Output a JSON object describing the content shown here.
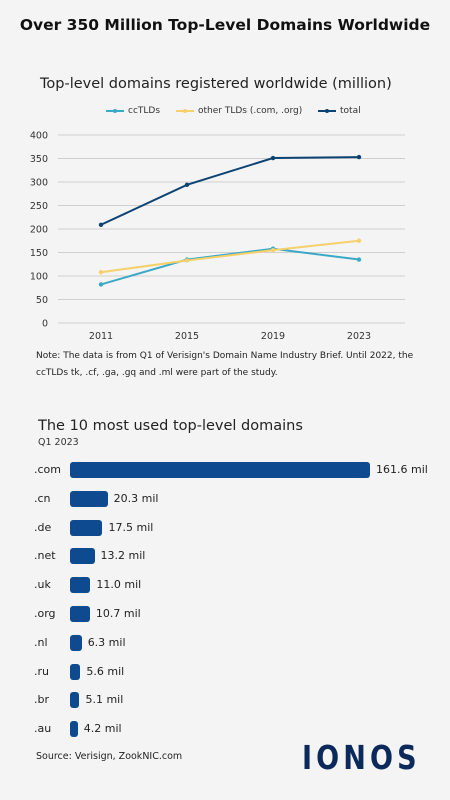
{
  "title": "Over 350 Million Top-Level Domains Worldwide",
  "colors": {
    "ccTLDs": "#3aa8c7",
    "other": "#f5d06b",
    "total": "#0d4373",
    "bar": "#0d4a8f",
    "logo": "#0b2a5b"
  },
  "chart_data": [
    {
      "type": "line",
      "title": "Top-level domains registered worldwide (million)",
      "x": [
        "2011",
        "2015",
        "2019",
        "2023"
      ],
      "ylim": [
        0,
        400
      ],
      "yticks": [
        0,
        50,
        100,
        150,
        200,
        250,
        300,
        350,
        400
      ],
      "grid": true,
      "legend_position": "top",
      "series": [
        {
          "name": "ccTLDs",
          "values": [
            82,
            135,
            158,
            135
          ]
        },
        {
          "name": "other TLDs (.com, .org)",
          "values": [
            108,
            133,
            155,
            175
          ]
        },
        {
          "name": "total",
          "values": [
            209,
            294,
            351,
            353
          ]
        }
      ],
      "note": "Note: The data is from Q1 of Verisign's Domain Name Industry Brief. Until 2022, the ccTLDs tk, .cf, .ga, .gq and .ml were part of the study."
    },
    {
      "type": "bar",
      "orientation": "horizontal",
      "title": "The 10 most used top-level domains",
      "subtitle": "Q1 2023",
      "categories": [
        ".com",
        ".cn",
        ".de",
        ".net",
        ".uk",
        ".org",
        ".nl",
        ".ru",
        ".br",
        ".au"
      ],
      "values": [
        161.6,
        20.3,
        17.5,
        13.2,
        11.0,
        10.7,
        6.3,
        5.6,
        5.1,
        4.2
      ],
      "value_labels": [
        "161.6 mil",
        "20.3 mil",
        "17.5 mil",
        "13.2 mil",
        "11.0 mil",
        "10.7 mil",
        "6.3 mil",
        "5.6 mil",
        "5.1 mil",
        "4.2 mil"
      ]
    }
  ],
  "source": "Source: Verisign, ZookNIC.com",
  "logo_text": "IONOS"
}
